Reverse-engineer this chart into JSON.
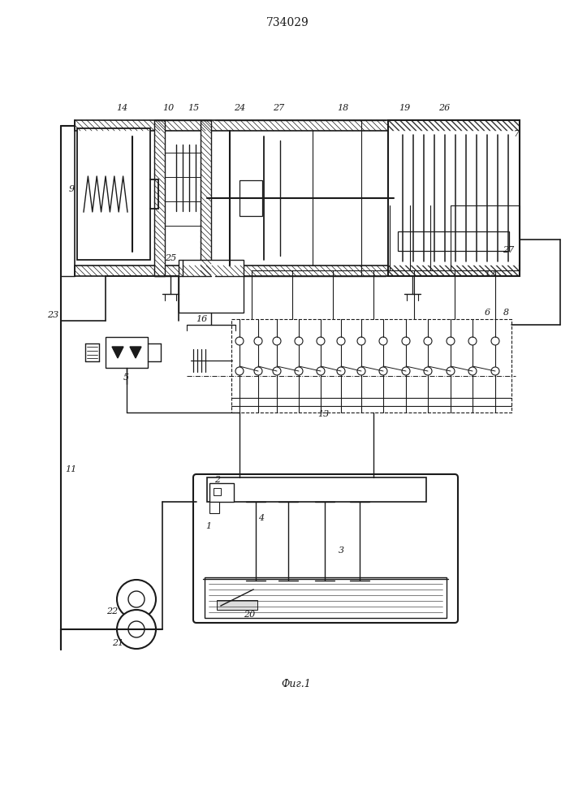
{
  "title": "734029",
  "fig_label": "Фиг.1",
  "bg_color": "#ffffff",
  "lc": "#1a1a1a",
  "fig_width": 7.07,
  "fig_height": 10.0,
  "dpi": 100
}
